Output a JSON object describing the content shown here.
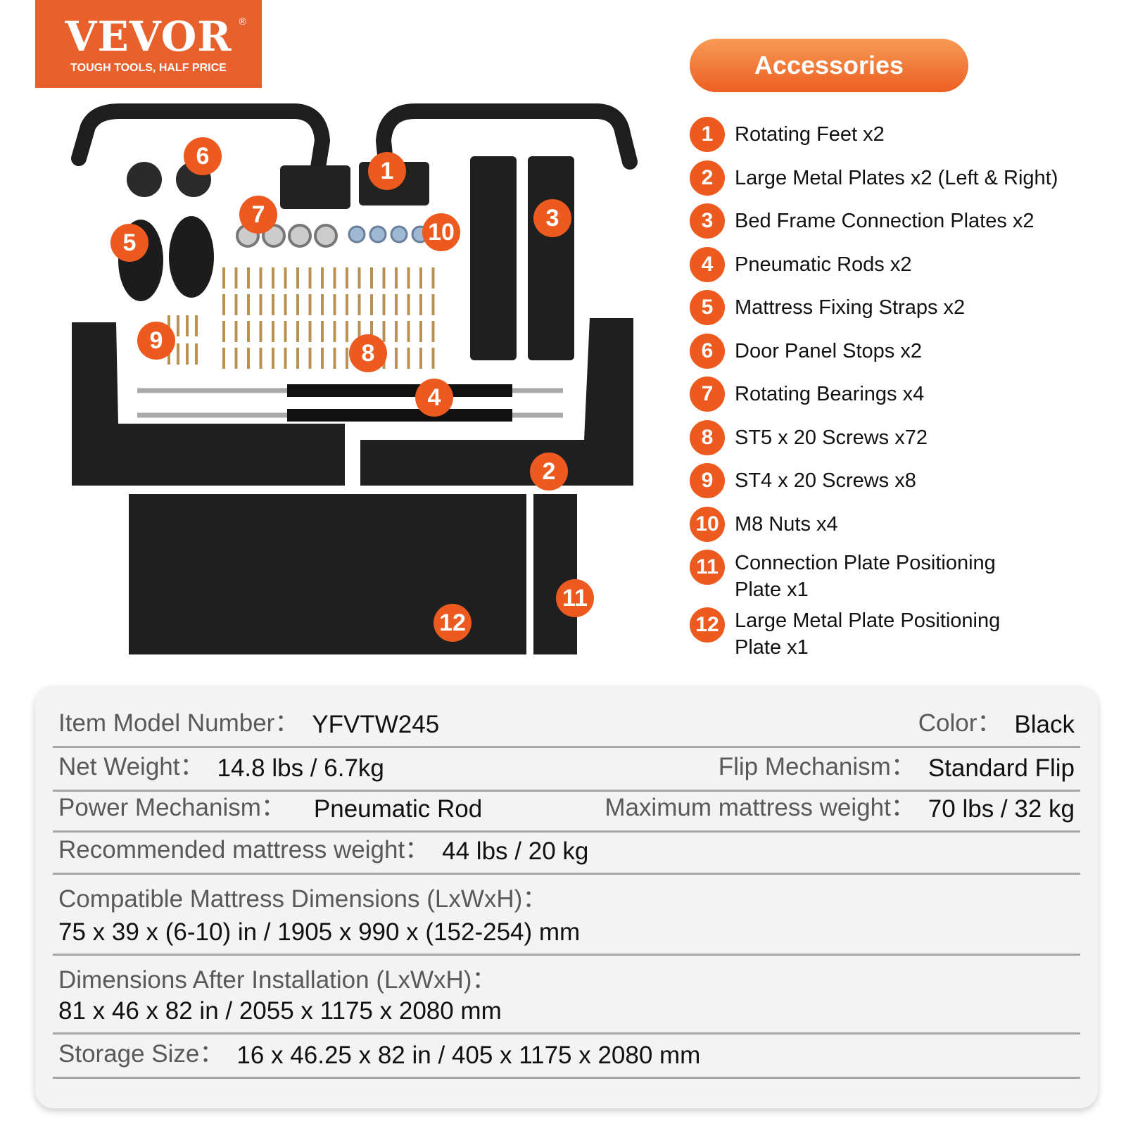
{
  "logo": {
    "brand": "VEVOR",
    "registered": "®",
    "tagline": "TOUGH TOOLS, HALF PRICE"
  },
  "accessories": {
    "title": "Accessories",
    "items": [
      {
        "num": "1",
        "label": "Rotating Feet x2"
      },
      {
        "num": "2",
        "label": "Large Metal Plates x2 (Left & Right)"
      },
      {
        "num": "3",
        "label": "Bed Frame Connection Plates x2"
      },
      {
        "num": "4",
        "label": "Pneumatic Rods x2"
      },
      {
        "num": "5",
        "label": "Mattress Fixing Straps x2"
      },
      {
        "num": "6",
        "label": "Door Panel Stops x2"
      },
      {
        "num": "7",
        "label": "Rotating Bearings x4"
      },
      {
        "num": "8",
        "label": "ST5 x 20 Screws x72"
      },
      {
        "num": "9",
        "label": "ST4 x 20 Screws x8"
      },
      {
        "num": "10",
        "label": "M8 Nuts x4"
      },
      {
        "num": "11",
        "label": "Connection Plate Positioning Plate x1"
      },
      {
        "num": "12",
        "label": "Large Metal Plate Positioning Plate x1"
      }
    ],
    "accent": "#ec5a1f"
  },
  "photo_labels": [
    "1",
    "2",
    "3",
    "4",
    "5",
    "6",
    "7",
    "8",
    "9",
    "10",
    "11",
    "12"
  ],
  "specs": {
    "model_label": "Item Model Number：",
    "model": "YFVTW245",
    "color_label": "Color：",
    "color": "Black",
    "weight_label": "Net Weight：",
    "weight": "14.8 lbs / 6.7kg",
    "flip_label": "Flip Mechanism：",
    "flip": "Standard Flip",
    "power_label": "Power Mechanism：",
    "power": "Pneumatic Rod",
    "max_label": "Maximum mattress weight：",
    "max": "70 lbs / 32 kg",
    "rec_label": "Recommended mattress weight：",
    "rec": "44 lbs / 20 kg",
    "compat_label": "Compatible Mattress Dimensions (LxWxH)：",
    "compat": "75 x 39 x (6-10) in / 1905 x 990 x (152-254) mm",
    "install_label": "Dimensions After Installation (LxWxH)：",
    "install": "81 x 46 x 82 in / 2055 x 1175 x 2080 mm",
    "storage_label": "Storage Size：",
    "storage": "16 x 46.25 x 82 in / 405 x 1175 x 2080 mm"
  }
}
